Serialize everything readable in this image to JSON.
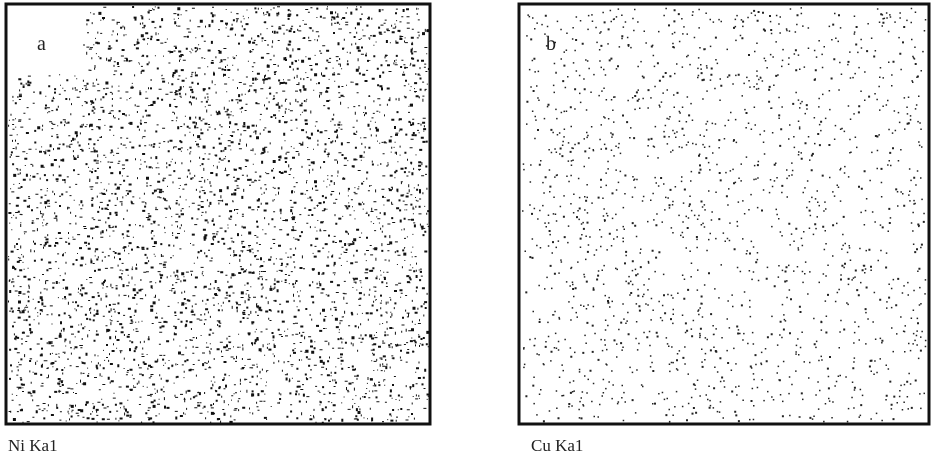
{
  "panels": [
    {
      "letter": "a",
      "caption": "Ni Ka1"
    },
    {
      "letter": "b",
      "caption": "Cu Ka1"
    }
  ]
}
